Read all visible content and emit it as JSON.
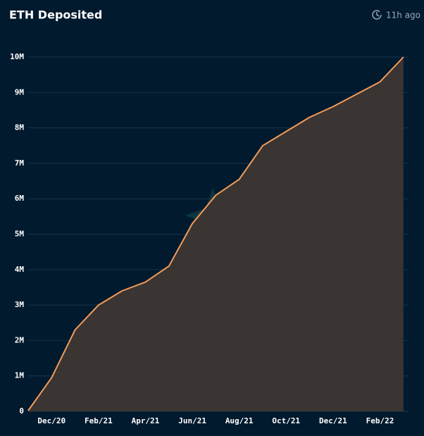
{
  "header": {
    "title": "ETH Deposited",
    "updated": "11h ago"
  },
  "chart_data": {
    "type": "area",
    "categories": [
      null,
      "Dec/20",
      null,
      "Feb/21",
      null,
      "Apr/21",
      null,
      "Jun/21",
      null,
      "Aug/21",
      null,
      "Oct/21",
      null,
      "Dec/21",
      null,
      "Feb/22",
      null
    ],
    "values": [
      20000,
      950000,
      2300000,
      3000000,
      3400000,
      3650000,
      4100000,
      5300000,
      6100000,
      6550000,
      7500000,
      7900000,
      8300000,
      8600000,
      8950000,
      9300000,
      10000000
    ],
    "color": "#f39c5a",
    "fill": "#3a3532",
    "ylim": [
      0,
      10000000
    ],
    "yticks": [
      0,
      {
        "value": 1000000,
        "label": "1M"
      },
      {
        "value": 2000000,
        "label": "2M"
      },
      {
        "value": 3000000,
        "label": "3M"
      },
      {
        "value": 4000000,
        "label": "4M"
      },
      {
        "value": 5000000,
        "label": "5M"
      },
      {
        "value": 6000000,
        "label": "6M"
      },
      {
        "value": 7000000,
        "label": "7M"
      },
      {
        "value": 8000000,
        "label": "8M"
      },
      {
        "value": 9000000,
        "label": "9M"
      },
      {
        "value": 10000000,
        "label": "10M"
      }
    ],
    "grid": true
  }
}
